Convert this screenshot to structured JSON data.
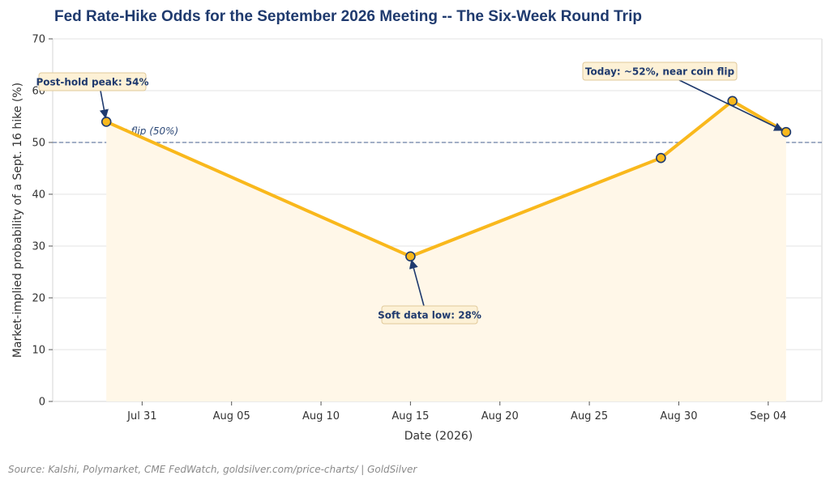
{
  "chart_data": {
    "type": "line",
    "title": "Fed Rate-Hike Odds for the September 2026 Meeting -- The Six-Week Round Trip",
    "xlabel": "Date (2026)",
    "ylabel": "Market-implied probability of a Sept. 16 hike (%)",
    "ylim": [
      0,
      70
    ],
    "xlim": [
      "2026-07-26",
      "2026-09-07"
    ],
    "yticks": [
      0,
      10,
      20,
      30,
      40,
      50,
      60,
      70
    ],
    "xticks": [
      {
        "date": "2026-07-31",
        "label": "Jul 31"
      },
      {
        "date": "2026-08-05",
        "label": "Aug 05"
      },
      {
        "date": "2026-08-10",
        "label": "Aug 10"
      },
      {
        "date": "2026-08-15",
        "label": "Aug 15"
      },
      {
        "date": "2026-08-20",
        "label": "Aug 20"
      },
      {
        "date": "2026-08-25",
        "label": "Aug 25"
      },
      {
        "date": "2026-08-30",
        "label": "Aug 30"
      },
      {
        "date": "2026-09-04",
        "label": "Sep 04"
      }
    ],
    "series": [
      {
        "color": "#f9b81c",
        "points": [
          {
            "date": "2026-07-29",
            "value": 54
          },
          {
            "date": "2026-08-15",
            "value": 28
          },
          {
            "date": "2026-08-29",
            "value": 47
          },
          {
            "date": "2026-09-02",
            "value": 58
          },
          {
            "date": "2026-09-05",
            "value": 52
          }
        ]
      }
    ],
    "reference_line": {
      "value": 50,
      "label": "Coin flip (50%)",
      "color": "#6a7fa5"
    },
    "annotations": [
      {
        "text": "Post-hold peak: 54%",
        "date": "2026-07-29",
        "value": 54
      },
      {
        "text": "Soft data low: 28%",
        "date": "2026-08-15",
        "value": 28
      },
      {
        "text": "Today: ~52%, near coin flip",
        "date": "2026-09-05",
        "value": 52
      }
    ],
    "grid": "horizontal",
    "fill_color": "#fff7e8",
    "marker_edge_color": "#1f3a6e"
  },
  "source": "Source: Kalshi, Polymarket, CME FedWatch, goldsilver.com/price-charts/ | GoldSilver"
}
